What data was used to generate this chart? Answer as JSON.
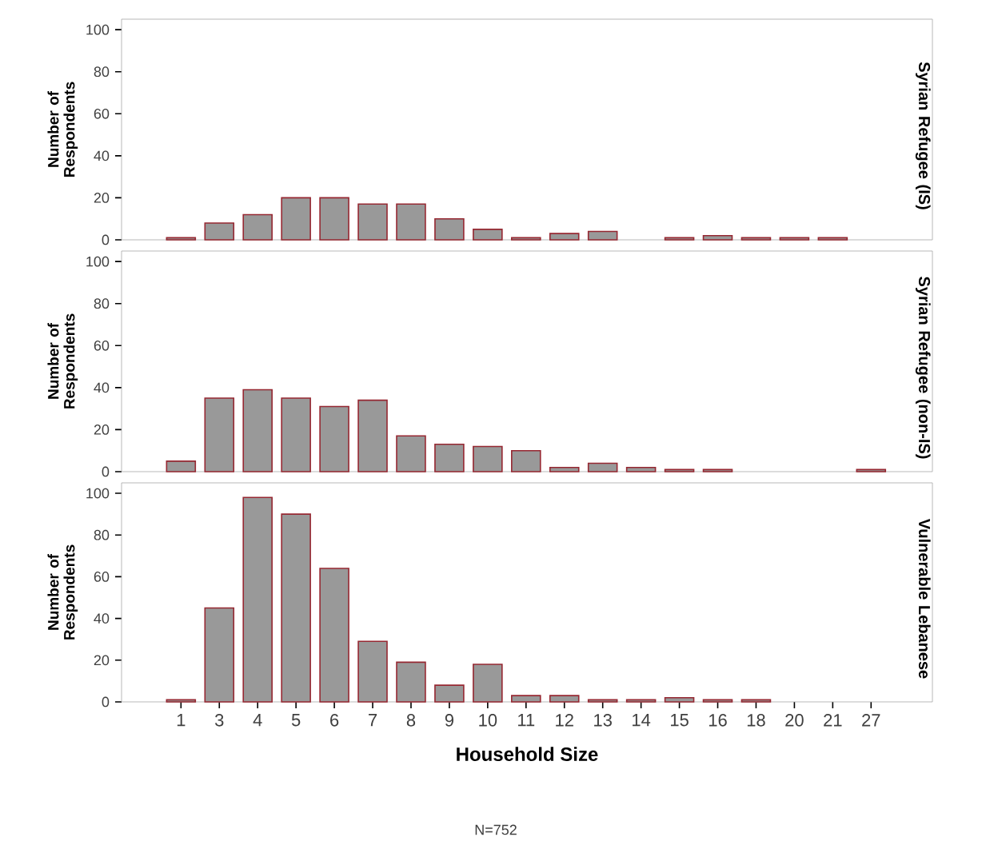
{
  "chart_data": [
    {
      "type": "bar",
      "title": "Syrian Refugee (IS)",
      "ylabel": "Number of Respondents",
      "categories": [
        "1",
        "3",
        "4",
        "5",
        "6",
        "7",
        "8",
        "9",
        "10",
        "11",
        "12",
        "13",
        "14",
        "15",
        "16",
        "18",
        "20",
        "21",
        "27"
      ],
      "values": [
        1,
        8,
        12,
        20,
        20,
        17,
        17,
        10,
        5,
        1,
        3,
        4,
        null,
        1,
        2,
        1,
        1,
        1,
        null
      ],
      "color": "#999999",
      "ylim": [
        0,
        105
      ],
      "yticks": [
        0,
        20,
        40,
        60,
        80,
        100
      ],
      "tick_labels": "y"
    },
    {
      "type": "bar",
      "title": "Syrian Refugee (non-IS)",
      "ylabel": "Number of Respondents",
      "categories": [
        "1",
        "3",
        "4",
        "5",
        "6",
        "7",
        "8",
        "9",
        "10",
        "11",
        "12",
        "13",
        "14",
        "15",
        "16",
        "18",
        "20",
        "21",
        "27"
      ],
      "values": [
        5,
        35,
        39,
        35,
        31,
        34,
        17,
        13,
        12,
        10,
        2,
        4,
        2,
        1,
        1,
        null,
        null,
        null,
        1
      ],
      "color": "#999999",
      "ylim": [
        0,
        105
      ],
      "yticks": [
        0,
        20,
        40,
        60,
        80,
        100
      ],
      "tick_labels": "y"
    },
    {
      "type": "bar",
      "title": "Vulnerable Lebanese",
      "ylabel": "Number of Respondents",
      "xlabel": "Household Size",
      "categories": [
        "1",
        "3",
        "4",
        "5",
        "6",
        "7",
        "8",
        "9",
        "10",
        "11",
        "12",
        "13",
        "14",
        "15",
        "16",
        "18",
        "20",
        "21",
        "27"
      ],
      "values": [
        1,
        45,
        98,
        90,
        64,
        29,
        19,
        8,
        18,
        3,
        3,
        1,
        1,
        2,
        1,
        1,
        null,
        null,
        null
      ],
      "color": "#999999",
      "ylim": [
        0,
        105
      ],
      "yticks": [
        0,
        20,
        40,
        60,
        80,
        100
      ],
      "annotations": [
        "N=752"
      ]
    }
  ]
}
